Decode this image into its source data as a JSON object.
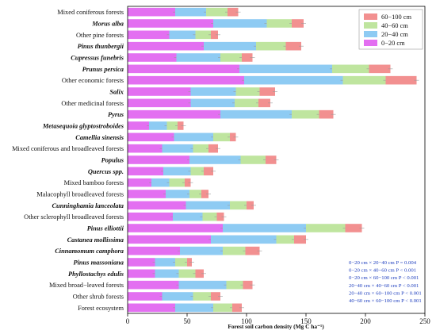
{
  "chart_data": {
    "type": "bar",
    "orientation": "horizontal",
    "stacked": true,
    "xlabel": "Forest soil carbon density (Mg C ha⁻¹)",
    "xlim": [
      0,
      250
    ],
    "xticks": [
      0,
      50,
      100,
      150,
      200,
      250
    ],
    "categories": [
      {
        "label": "Mixed coniferous forests",
        "italic": false
      },
      {
        "label": "Morus alba",
        "italic": true
      },
      {
        "label": "Other pine forests",
        "italic": false
      },
      {
        "label": "Pinus thunbergii",
        "italic": true
      },
      {
        "label": "Cupressus funebris",
        "italic": true
      },
      {
        "label": "Prunus persica",
        "italic": true
      },
      {
        "label": "Other economic forests",
        "italic": false
      },
      {
        "label": "Salix",
        "italic": true
      },
      {
        "label": "Other medicinal forests",
        "italic": false
      },
      {
        "label": "Pyrus",
        "italic": true
      },
      {
        "label": "Metasequoia glyptostroboides",
        "italic": true
      },
      {
        "label": "Camellia sinensis",
        "italic": true
      },
      {
        "label": "Mixed coniferous and broadleaved forests",
        "italic": false
      },
      {
        "label": "Populus",
        "italic": true
      },
      {
        "label": "Quercus spp.",
        "italic": true
      },
      {
        "label": "Mixed bamboo forests",
        "italic": false
      },
      {
        "label": "Malacophyll broadleaved forests",
        "italic": false
      },
      {
        "label": "Cunninghamia lanceolata",
        "italic": true
      },
      {
        "label": "Other sclerophyll broadleaved forests",
        "italic": false
      },
      {
        "label": "Pinus elliottii",
        "italic": true
      },
      {
        "label": "Castanea mollissima",
        "italic": true
      },
      {
        "label": "Cinnamomum camphora",
        "italic": true
      },
      {
        "label": "Pinus massoniana",
        "italic": true
      },
      {
        "label": "Phyllostachys edulis",
        "italic": true
      },
      {
        "label": "Mixed broad−leaved forests",
        "italic": false
      },
      {
        "label": "Other shrub forests",
        "italic": false
      },
      {
        "label": "Forest ecosystem",
        "italic": false
      }
    ],
    "series": [
      {
        "name": "0−20 cm",
        "color": "#e36ff1",
        "values": [
          40,
          72,
          35,
          64,
          41,
          94,
          98,
          53,
          53,
          78,
          18,
          39,
          29,
          52,
          30,
          20,
          32,
          49,
          38,
          80,
          70,
          44,
          23,
          23,
          43,
          29,
          40
        ]
      },
      {
        "name": "20−40 cm",
        "color": "#8ecbf3",
        "values": [
          26,
          45,
          22,
          44,
          37,
          78,
          83,
          38,
          37,
          60,
          15,
          33,
          26,
          43,
          23,
          15,
          20,
          37,
          25,
          70,
          55,
          36,
          17,
          20,
          40,
          26,
          32
        ]
      },
      {
        "name": "40−60 cm",
        "color": "#bfe59f",
        "values": [
          18,
          21,
          13,
          25,
          18,
          31,
          36,
          20,
          20,
          23,
          9,
          14,
          13,
          21,
          11,
          13,
          10,
          14,
          12,
          33,
          15,
          19,
          10,
          14,
          14,
          15,
          16
        ]
      },
      {
        "name": "60−100 cm",
        "color": "#f29090",
        "values": [
          9,
          10,
          6,
          13,
          9,
          18,
          26,
          13,
          10,
          12,
          5,
          5,
          8,
          9,
          8,
          5,
          6,
          6,
          6,
          14,
          10,
          12,
          4,
          7,
          8,
          8,
          8
        ]
      }
    ],
    "legend": {
      "placement": "top-right",
      "order": [
        "60−100 cm",
        "40−60 cm",
        "20−40 cm",
        "0−20 cm"
      ]
    },
    "grid": false,
    "annotations": [
      "0−20 cm × 20−40 cm    P = 0.004",
      "0−20 cm × 40−60 cm    P < 0.001",
      "0−20 cm × 60−100 cm  P < 0.001",
      "20−40 cm × 40−60 cm  P < 0.001",
      "20−40 cm × 60−100 cm  P < 0.001",
      "40−60 cm × 60−100 cm  P < 0.001"
    ]
  }
}
